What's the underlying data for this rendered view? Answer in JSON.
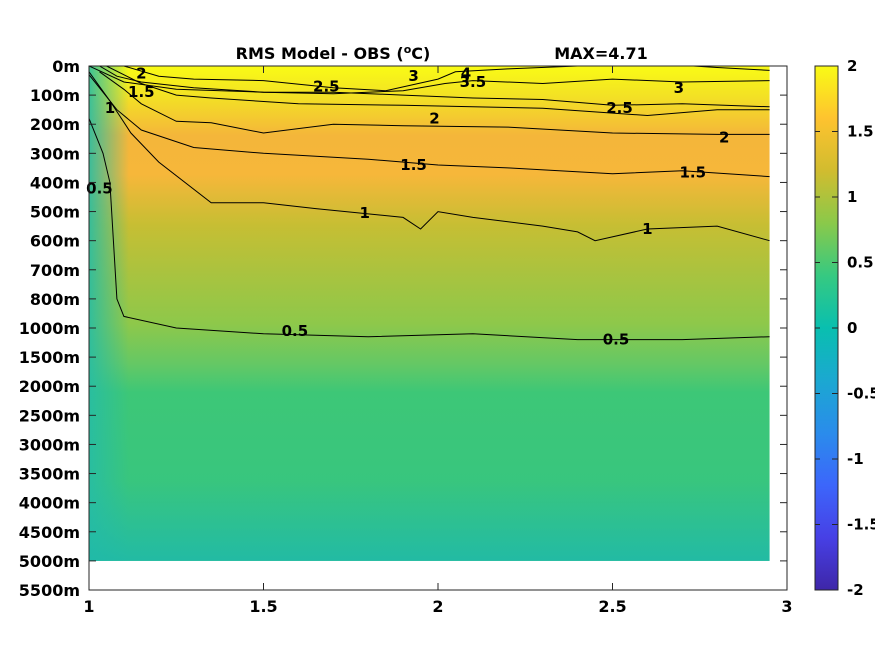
{
  "chart_data": {
    "type": "heatmap",
    "title": "RMS Model - OBS (",
    "title_superscript": "o",
    "title_unit_suffix": "C)",
    "max_label": "MAX=4.71",
    "xlim": [
      1,
      3
    ],
    "x_ticks": [
      1,
      1.5,
      2,
      2.5,
      3
    ],
    "x_tick_labels": [
      "1",
      "1.5",
      "2",
      "2.5",
      "3"
    ],
    "x_data_extent": [
      1,
      2.95
    ],
    "y_tick_labels": [
      "0m",
      "100m",
      "200m",
      "300m",
      "400m",
      "500m",
      "600m",
      "700m",
      "800m",
      "1000m",
      "1500m",
      "2000m",
      "2500m",
      "3000m",
      "3500m",
      "4000m",
      "4500m",
      "5000m",
      "5500m"
    ],
    "y_data_extent_levels": [
      "0m",
      "5000m"
    ],
    "colorbar": {
      "clim": [
        -2,
        2
      ],
      "ticks": [
        -2,
        -1.5,
        -1,
        -0.5,
        0,
        0.5,
        1,
        1.5,
        2
      ],
      "tick_labels": [
        "-2",
        "-1.5",
        "-1",
        "-0.5",
        "0",
        "0.5",
        "1",
        "1.5",
        "2"
      ],
      "colormap": "parula",
      "colors": [
        "#3e26a8",
        "#4740e5",
        "#3c66fb",
        "#2a8ceb",
        "#1ba8d1",
        "#09bfaf",
        "#36c981",
        "#8ac94a",
        "#d1bc2f",
        "#fec32f",
        "#f9fb15"
      ]
    },
    "contour_levels": [
      0.5,
      1,
      1.5,
      2,
      2.5,
      3,
      3.5,
      4
    ],
    "contour_labels": [
      {
        "text": "2",
        "x": 1.15,
        "depth_index": 0.25
      },
      {
        "text": "1.5",
        "x": 1.15,
        "depth_index": 0.9
      },
      {
        "text": "1",
        "x": 1.06,
        "depth_index": 1.45
      },
      {
        "text": "0.5",
        "x": 1.03,
        "depth_index": 4.2
      },
      {
        "text": "2.5",
        "x": 1.68,
        "depth_index": 0.7
      },
      {
        "text": "3",
        "x": 1.93,
        "depth_index": 0.35
      },
      {
        "text": "4",
        "x": 2.08,
        "depth_index": 0.25
      },
      {
        "text": "3.5",
        "x": 2.1,
        "depth_index": 0.55
      },
      {
        "text": "3",
        "x": 2.69,
        "depth_index": 0.75
      },
      {
        "text": "2",
        "x": 1.99,
        "depth_index": 1.8
      },
      {
        "text": "2.5",
        "x": 2.52,
        "depth_index": 1.45
      },
      {
        "text": "2",
        "x": 2.82,
        "depth_index": 2.45
      },
      {
        "text": "1.5",
        "x": 1.93,
        "depth_index": 3.4
      },
      {
        "text": "1.5",
        "x": 2.73,
        "depth_index": 3.65
      },
      {
        "text": "1",
        "x": 1.79,
        "depth_index": 5.05
      },
      {
        "text": "1",
        "x": 2.6,
        "depth_index": 5.6
      },
      {
        "text": "0.5",
        "x": 1.59,
        "depth_index": 9.1
      },
      {
        "text": "0.5",
        "x": 2.51,
        "depth_index": 9.4
      }
    ],
    "grid": false,
    "legend": "colorbar-right"
  }
}
